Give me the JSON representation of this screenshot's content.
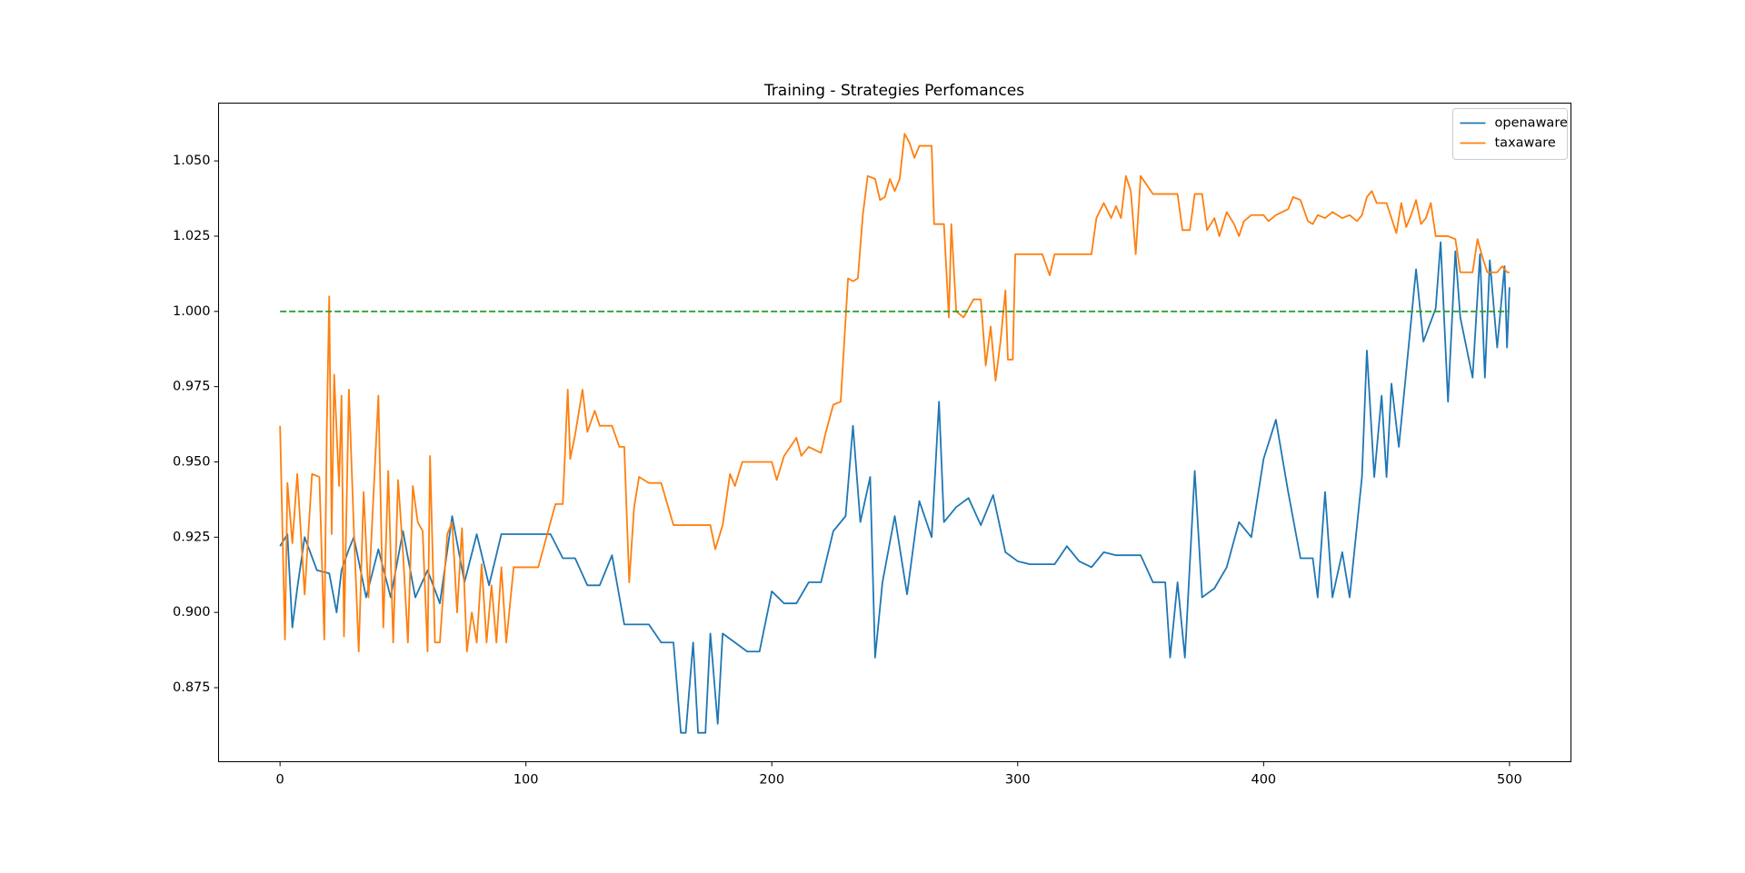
{
  "chart_data": {
    "type": "line",
    "title": "Training - Strategies Perfomances",
    "xlim": [
      -25,
      525
    ],
    "xticks": [
      0,
      100,
      200,
      300,
      400,
      500
    ],
    "ylim": [
      0.8504,
      1.0692
    ],
    "yticks": [
      0.875,
      {
        "value": 0.9,
        "label": "0.900"
      },
      0.925,
      {
        "value": 0.95,
        "label": "0.950"
      },
      0.975,
      {
        "value": 1.0,
        "label": "1.000"
      },
      1.025,
      {
        "value": 1.05,
        "label": "1.050"
      }
    ],
    "legend": "upper right",
    "series": [
      {
        "name": "openaware",
        "color": "#1f77b4",
        "x": [
          0,
          3,
          5,
          7,
          10,
          15,
          20,
          23,
          25,
          28,
          30,
          35,
          40,
          45,
          50,
          55,
          60,
          65,
          70,
          75,
          80,
          85,
          90,
          95,
          100,
          105,
          110,
          115,
          120,
          125,
          130,
          135,
          140,
          145,
          150,
          155,
          160,
          163,
          165,
          168,
          170,
          173,
          175,
          178,
          180,
          185,
          190,
          195,
          200,
          205,
          210,
          215,
          220,
          225,
          230,
          233,
          236,
          240,
          242,
          245,
          250,
          255,
          260,
          265,
          268,
          270,
          275,
          280,
          285,
          290,
          295,
          300,
          305,
          310,
          315,
          320,
          325,
          330,
          335,
          340,
          345,
          350,
          355,
          360,
          362,
          365,
          368,
          372,
          375,
          380,
          385,
          390,
          395,
          400,
          405,
          410,
          415,
          420,
          422,
          425,
          428,
          432,
          435,
          440,
          442,
          445,
          448,
          450,
          452,
          455,
          458,
          462,
          465,
          470,
          472,
          475,
          478,
          480,
          485,
          488,
          490,
          492,
          495,
          498,
          499,
          500
        ],
        "values": [
          0.922,
          0.926,
          0.895,
          0.908,
          0.925,
          0.914,
          0.913,
          0.9,
          0.914,
          0.921,
          0.925,
          0.905,
          0.921,
          0.905,
          0.927,
          0.905,
          0.914,
          0.903,
          0.932,
          0.91,
          0.926,
          0.909,
          0.926,
          0.926,
          0.926,
          0.926,
          0.926,
          0.918,
          0.918,
          0.909,
          0.909,
          0.919,
          0.896,
          0.896,
          0.896,
          0.89,
          0.89,
          0.86,
          0.86,
          0.89,
          0.86,
          0.86,
          0.893,
          0.863,
          0.893,
          0.89,
          0.887,
          0.887,
          0.907,
          0.903,
          0.903,
          0.91,
          0.91,
          0.927,
          0.932,
          0.962,
          0.93,
          0.945,
          0.885,
          0.91,
          0.932,
          0.906,
          0.937,
          0.925,
          0.97,
          0.93,
          0.935,
          0.938,
          0.929,
          0.939,
          0.92,
          0.917,
          0.916,
          0.916,
          0.916,
          0.922,
          0.917,
          0.915,
          0.92,
          0.919,
          0.919,
          0.919,
          0.91,
          0.91,
          0.885,
          0.91,
          0.885,
          0.947,
          0.905,
          0.908,
          0.915,
          0.93,
          0.925,
          0.951,
          0.964,
          0.94,
          0.918,
          0.918,
          0.905,
          0.94,
          0.905,
          0.92,
          0.905,
          0.945,
          0.987,
          0.945,
          0.972,
          0.945,
          0.976,
          0.955,
          0.98,
          1.014,
          0.99,
          1.001,
          1.023,
          0.97,
          1.02,
          0.998,
          0.978,
          1.019,
          0.978,
          1.017,
          0.988,
          1.015,
          0.988,
          1.008
        ]
      },
      {
        "name": "taxaware",
        "color": "#ff7f0e",
        "x": [
          0,
          2,
          3,
          5,
          7,
          10,
          13,
          16,
          18,
          19,
          20,
          21,
          22,
          24,
          25,
          26,
          28,
          30,
          32,
          34,
          36,
          38,
          40,
          42,
          44,
          46,
          48,
          50,
          52,
          54,
          56,
          58,
          60,
          61,
          63,
          65,
          68,
          70,
          72,
          74,
          76,
          78,
          80,
          82,
          84,
          86,
          88,
          90,
          92,
          95,
          100,
          105,
          110,
          112,
          115,
          117,
          118,
          120,
          123,
          125,
          128,
          130,
          135,
          138,
          140,
          142,
          144,
          146,
          150,
          155,
          160,
          165,
          170,
          175,
          177,
          180,
          183,
          185,
          188,
          195,
          200,
          202,
          205,
          210,
          212,
          215,
          220,
          222,
          225,
          228,
          231,
          233,
          235,
          237,
          239,
          242,
          244,
          246,
          248,
          250,
          252,
          254,
          256,
          258,
          260,
          265,
          266,
          270,
          272,
          273,
          275,
          278,
          282,
          285,
          287,
          289,
          291,
          293,
          295,
          296,
          298,
          299,
          305,
          310,
          313,
          315,
          320,
          325,
          330,
          332,
          335,
          338,
          340,
          342,
          344,
          346,
          348,
          350,
          355,
          360,
          365,
          367,
          370,
          372,
          375,
          377,
          380,
          382,
          385,
          388,
          390,
          392,
          395,
          400,
          402,
          405,
          410,
          412,
          415,
          418,
          420,
          422,
          425,
          428,
          432,
          435,
          438,
          440,
          442,
          444,
          446,
          450,
          454,
          456,
          458,
          460,
          462,
          464,
          466,
          468,
          470,
          475,
          478,
          480,
          485,
          487,
          489,
          491,
          495,
          497,
          499,
          500
        ],
        "values": [
          0.962,
          0.891,
          0.943,
          0.923,
          0.946,
          0.906,
          0.946,
          0.945,
          0.891,
          0.96,
          1.005,
          0.926,
          0.979,
          0.942,
          0.972,
          0.892,
          0.974,
          0.928,
          0.887,
          0.94,
          0.905,
          0.939,
          0.972,
          0.895,
          0.947,
          0.89,
          0.944,
          0.92,
          0.89,
          0.942,
          0.93,
          0.927,
          0.887,
          0.952,
          0.89,
          0.89,
          0.926,
          0.93,
          0.9,
          0.928,
          0.887,
          0.9,
          0.89,
          0.916,
          0.89,
          0.909,
          0.89,
          0.915,
          0.89,
          0.915,
          0.915,
          0.915,
          0.93,
          0.936,
          0.936,
          0.974,
          0.951,
          0.959,
          0.974,
          0.96,
          0.967,
          0.962,
          0.962,
          0.955,
          0.955,
          0.91,
          0.935,
          0.945,
          0.943,
          0.943,
          0.929,
          0.929,
          0.929,
          0.929,
          0.921,
          0.929,
          0.946,
          0.942,
          0.95,
          0.95,
          0.95,
          0.944,
          0.952,
          0.958,
          0.952,
          0.955,
          0.953,
          0.96,
          0.969,
          0.97,
          1.011,
          1.01,
          1.011,
          1.032,
          1.045,
          1.044,
          1.037,
          1.038,
          1.044,
          1.04,
          1.044,
          1.059,
          1.056,
          1.051,
          1.055,
          1.055,
          1.029,
          1.029,
          0.998,
          1.029,
          1.0,
          0.998,
          1.004,
          1.004,
          0.982,
          0.995,
          0.977,
          0.99,
          1.007,
          0.984,
          0.984,
          1.019,
          1.019,
          1.019,
          1.012,
          1.019,
          1.019,
          1.019,
          1.019,
          1.031,
          1.036,
          1.031,
          1.035,
          1.031,
          1.045,
          1.04,
          1.019,
          1.045,
          1.039,
          1.039,
          1.039,
          1.027,
          1.027,
          1.039,
          1.039,
          1.027,
          1.031,
          1.025,
          1.033,
          1.029,
          1.025,
          1.03,
          1.032,
          1.032,
          1.03,
          1.032,
          1.034,
          1.038,
          1.037,
          1.03,
          1.029,
          1.032,
          1.031,
          1.033,
          1.031,
          1.032,
          1.03,
          1.032,
          1.038,
          1.04,
          1.036,
          1.036,
          1.026,
          1.036,
          1.028,
          1.032,
          1.037,
          1.029,
          1.031,
          1.036,
          1.025,
          1.025,
          1.024,
          1.013,
          1.013,
          1.024,
          1.018,
          1.013,
          1.013,
          1.015,
          1.013,
          1.013
        ]
      },
      {
        "color": "#2ca02c",
        "dash": true,
        "x": [
          0,
          500
        ],
        "values": [
          1.0,
          1.0
        ]
      }
    ]
  }
}
